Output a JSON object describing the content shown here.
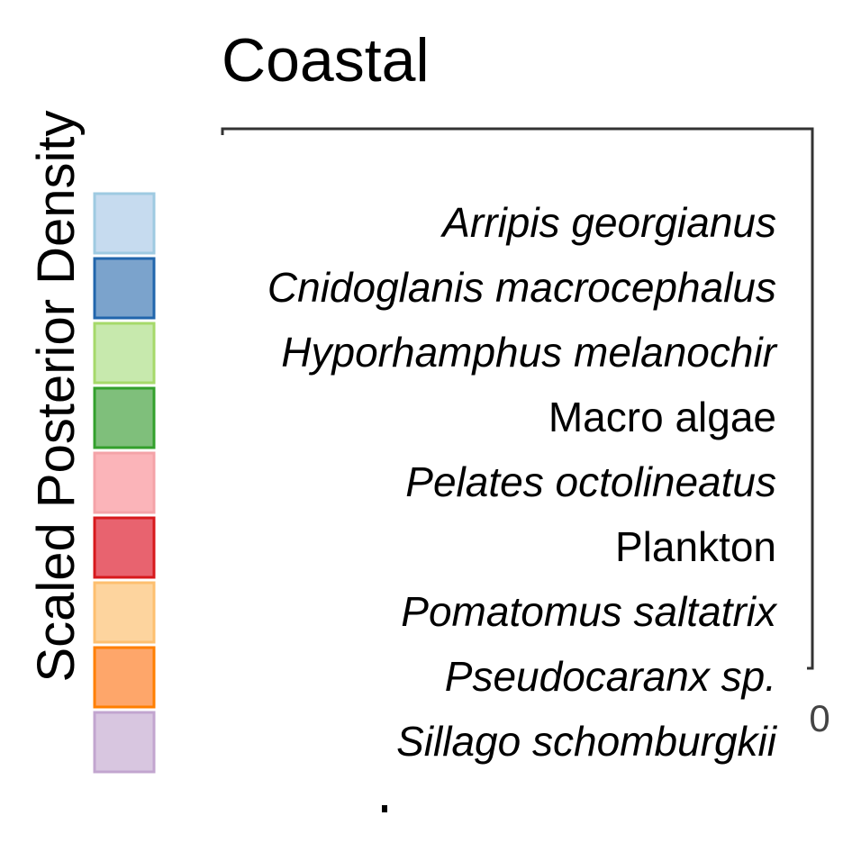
{
  "chart_data": {
    "type": "area",
    "title": "Coastal",
    "ylabel": "Scaled Posterior Density",
    "xlabel": "",
    "y_tick_labels": [
      "0"
    ],
    "grid": false,
    "legend_position": "left",
    "series": [
      {
        "name": "Arripis georgianus",
        "italic": true,
        "fill": "#c6dbef",
        "stroke": "#9ecae1"
      },
      {
        "name": "Cnidoglanis macrocephalus",
        "italic": true,
        "fill": "#7ba3cc",
        "stroke": "#2166ac"
      },
      {
        "name": "Hyporhamphus melanochir",
        "italic": true,
        "fill": "#c7e9ad",
        "stroke": "#a6d96a"
      },
      {
        "name": "Macro algae",
        "italic": false,
        "fill": "#7fbf7b",
        "stroke": "#33a02c"
      },
      {
        "name": "Pelates octolineatus",
        "italic": true,
        "fill": "#fbb4b9",
        "stroke": "#f4a3a8"
      },
      {
        "name": "Plankton",
        "italic": false,
        "fill": "#e8636f",
        "stroke": "#d7191c"
      },
      {
        "name": "Pomatomus saltatrix",
        "italic": true,
        "fill": "#fdd49e",
        "stroke": "#fdbf6f"
      },
      {
        "name": "Pseudocaranx sp.",
        "italic": true,
        "fill": "#fea66a",
        "stroke": "#ff7f00"
      },
      {
        "name": "Sillago schomburgkii",
        "italic": true,
        "fill": "#d8c6e0",
        "stroke": "#c2a5cf"
      }
    ]
  }
}
